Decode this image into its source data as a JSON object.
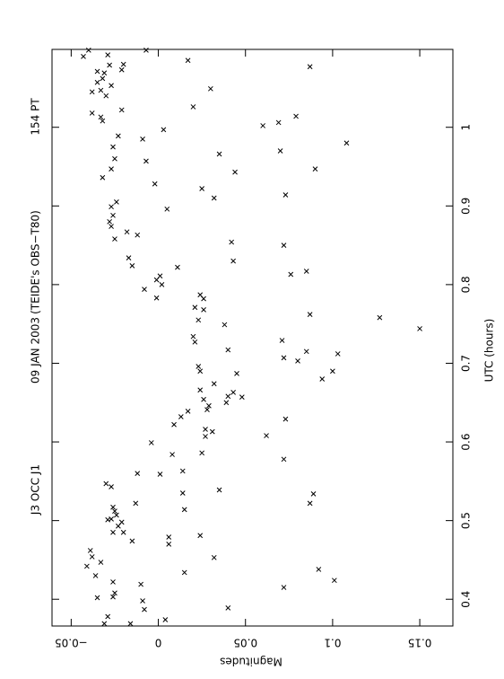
{
  "chart_data": {
    "type": "scatter",
    "title_parts": [
      "J3 OCC J1",
      "09 JAN 2003",
      "(TEIDE's OBS−T80)",
      "154 PT"
    ],
    "x_label": "UTC (hours)",
    "y_label": "Magnitudes",
    "xlim": [
      0.366,
      1.099
    ],
    "ylim": [
      -0.061,
      0.169
    ],
    "xticks": [
      0.4,
      0.5,
      0.6,
      0.7,
      0.8,
      0.9,
      1
    ],
    "yticks": [
      {
        "value": -0.05,
        "label": "−0.05"
      },
      0,
      0.05,
      0.1,
      0.15
    ],
    "color": "#000000",
    "x": [
      1.09,
      1.098,
      1.098,
      1.092,
      1.071,
      1.079,
      1.08,
      1.073,
      1.069,
      1.057,
      1.047,
      1.045,
      1.04,
      1.062,
      1.053,
      1.018,
      1.013,
      1.008,
      1.022,
      1.085,
      1.049,
      1.026,
      1.077,
      1.014,
      1.006,
      1.002,
      0.997,
      0.985,
      0.989,
      0.975,
      0.96,
      0.947,
      0.936,
      0.957,
      0.966,
      0.943,
      0.928,
      0.98,
      0.947,
      0.97,
      0.914,
      0.922,
      0.91,
      0.896,
      0.905,
      0.899,
      0.888,
      0.88,
      0.874,
      0.867,
      0.863,
      0.858,
      0.854,
      0.85,
      0.834,
      0.824,
      0.822,
      0.83,
      0.817,
      0.813,
      0.811,
      0.806,
      0.8,
      0.794,
      0.783,
      0.787,
      0.782,
      0.771,
      0.768,
      0.755,
      0.749,
      0.734,
      0.727,
      0.762,
      0.758,
      0.744,
      0.729,
      0.715,
      0.707,
      0.703,
      0.712,
      0.69,
      0.687,
      0.717,
      0.696,
      0.69,
      0.674,
      0.666,
      0.663,
      0.658,
      0.654,
      0.657,
      0.65,
      0.646,
      0.641,
      0.629,
      0.68,
      0.639,
      0.632,
      0.622,
      0.616,
      0.607,
      0.613,
      0.608,
      0.586,
      0.584,
      0.599,
      0.578,
      0.559,
      0.563,
      0.539,
      0.547,
      0.543,
      0.56,
      0.522,
      0.535,
      0.514,
      0.517,
      0.512,
      0.507,
      0.502,
      0.501,
      0.498,
      0.493,
      0.485,
      0.485,
      0.474,
      0.479,
      0.47,
      0.481,
      0.453,
      0.434,
      0.462,
      0.454,
      0.442,
      0.43,
      0.447,
      0.534,
      0.522,
      0.438,
      0.424,
      0.415,
      0.389,
      0.422,
      0.408,
      0.403,
      0.402,
      0.398,
      0.387,
      0.419,
      0.374,
      0.369,
      0.378,
      0.369
    ],
    "values": [
      -0.043,
      -0.04,
      -0.007,
      -0.029,
      -0.035,
      -0.028,
      -0.02,
      -0.021,
      -0.031,
      -0.035,
      -0.033,
      -0.038,
      -0.03,
      -0.032,
      -0.027,
      -0.038,
      -0.033,
      -0.032,
      -0.021,
      0.017,
      0.03,
      0.02,
      0.087,
      0.079,
      0.069,
      0.06,
      0.003,
      -0.009,
      -0.023,
      -0.026,
      -0.025,
      -0.027,
      -0.032,
      -0.007,
      0.035,
      0.044,
      -0.002,
      0.108,
      0.09,
      0.07,
      0.073,
      0.025,
      0.032,
      0.005,
      -0.024,
      -0.027,
      -0.026,
      -0.028,
      -0.027,
      -0.018,
      -0.012,
      -0.025,
      0.042,
      0.072,
      -0.017,
      -0.015,
      0.011,
      0.043,
      0.085,
      0.076,
      0.001,
      -0.001,
      0.002,
      -0.008,
      -0.001,
      0.024,
      0.026,
      0.021,
      0.026,
      0.023,
      0.038,
      0.02,
      0.021,
      0.087,
      0.127,
      0.15,
      0.071,
      0.085,
      0.072,
      0.08,
      0.103,
      0.1,
      0.045,
      0.04,
      0.023,
      0.024,
      0.032,
      0.024,
      0.043,
      0.04,
      0.026,
      0.048,
      0.039,
      0.029,
      0.028,
      0.073,
      0.094,
      0.017,
      0.013,
      0.009,
      0.027,
      0.027,
      0.031,
      0.062,
      0.025,
      0.008,
      -0.004,
      0.072,
      0.001,
      0.014,
      0.035,
      -0.03,
      -0.027,
      -0.012,
      -0.013,
      0.014,
      0.015,
      -0.026,
      -0.025,
      -0.024,
      -0.027,
      -0.029,
      -0.021,
      -0.023,
      -0.026,
      -0.02,
      -0.015,
      0.006,
      0.006,
      0.024,
      0.032,
      0.015,
      -0.039,
      -0.038,
      -0.041,
      -0.036,
      -0.033,
      0.089,
      0.087,
      0.092,
      0.101,
      0.072,
      0.04,
      -0.026,
      -0.025,
      -0.026,
      -0.035,
      -0.009,
      -0.008,
      -0.01,
      0.004,
      -0.031,
      -0.029,
      -0.016
    ]
  }
}
